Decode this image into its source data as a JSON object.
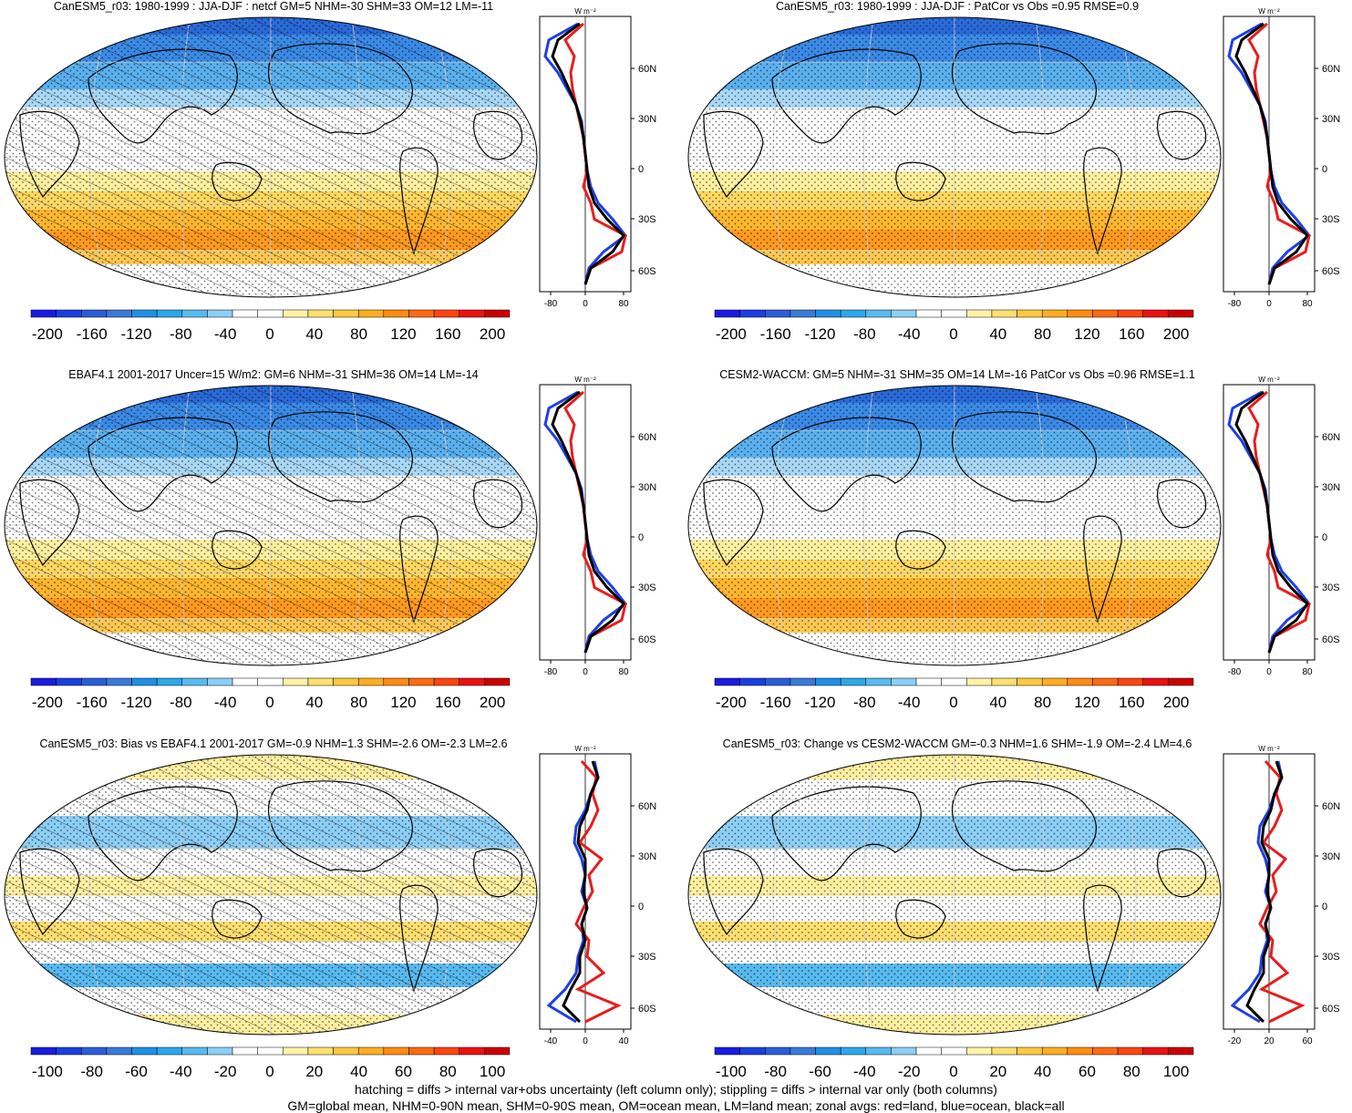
{
  "panels": [
    {
      "title": "CanESM5_r03: 1980-1999 : JJA-DJF : netcf GM=5 NHM=-30 SHM=33 OM=12 LM=-11",
      "colorbar": [
        "-200",
        "-160",
        "-120",
        "-80",
        "-40",
        "0",
        "40",
        "80",
        "120",
        "160",
        "200"
      ],
      "zonal_ticks": [
        "-80",
        "0",
        "80"
      ],
      "hatched": true,
      "variant": "base"
    },
    {
      "title": "CanESM5_r03: 1980-1999 : JJA-DJF : PatCor vs Obs =0.95 RMSE=0.9",
      "colorbar": [
        "-200",
        "-160",
        "-120",
        "-80",
        "-40",
        "0",
        "40",
        "80",
        "120",
        "160",
        "200"
      ],
      "zonal_ticks": [
        "-80",
        "0",
        "80"
      ],
      "hatched": false,
      "variant": "base"
    },
    {
      "title": "EBAF4.1 2001-2017 Uncer=15 W/m2: GM=6 NHM=-31 SHM=36 OM=14 LM=-14",
      "colorbar": [
        "-200",
        "-160",
        "-120",
        "-80",
        "-40",
        "0",
        "40",
        "80",
        "120",
        "160",
        "200"
      ],
      "zonal_ticks": [
        "-80",
        "0",
        "80"
      ],
      "hatched": true,
      "variant": "base"
    },
    {
      "title": "CESM2-WACCM: GM=5 NHM=-31 SHM=35 OM=14 LM=-16 PatCor vs Obs =0.96 RMSE=1.1",
      "colorbar": [
        "-200",
        "-160",
        "-120",
        "-80",
        "-40",
        "0",
        "40",
        "80",
        "120",
        "160",
        "200"
      ],
      "zonal_ticks": [
        "-80",
        "0",
        "80"
      ],
      "hatched": false,
      "variant": "base"
    },
    {
      "title": "CanESM5_r03: Bias vs EBAF4.1 2001-2017 GM=-0.9 NHM=1.3 SHM=-2.6 OM=-2.3 LM=2.6",
      "colorbar": [
        "-100",
        "-80",
        "-60",
        "-40",
        "-20",
        "0",
        "20",
        "40",
        "60",
        "80",
        "100"
      ],
      "zonal_ticks": [
        "-40",
        "0",
        "40"
      ],
      "hatched": true,
      "variant": "diff"
    },
    {
      "title": "CanESM5_r03: Change vs CESM2-WACCM GM=-0.3 NHM=1.6 SHM=-1.9 OM=-2.4 LM=4.6",
      "colorbar": [
        "-100",
        "-80",
        "-60",
        "-40",
        "-20",
        "0",
        "20",
        "40",
        "60",
        "80",
        "100"
      ],
      "zonal_ticks": [
        "-20",
        "20",
        "60"
      ],
      "hatched": false,
      "variant": "diff"
    }
  ],
  "lat_labels": [
    "60N",
    "30N",
    "0",
    "30S",
    "60S"
  ],
  "zonal_unit": "W m⁻²",
  "colors": {
    "ocean": "#1e3fe6",
    "land": "#e61e1e",
    "all": "#000000",
    "palette": [
      "#1a1ae6",
      "#1a3fe0",
      "#2a5ed8",
      "#3a7ad8",
      "#1e90e6",
      "#2aa8ec",
      "#58baf0",
      "#8ccff6",
      "#ffffff",
      "#ffffff",
      "#fff3a8",
      "#ffe070",
      "#ffc840",
      "#ffae20",
      "#ff8c10",
      "#ff6a10",
      "#ff4410",
      "#ee1010",
      "#cc0000"
    ]
  },
  "footer": {
    "line1": "hatching = diffs > internal var+obs uncertainty (left column only); stippling = diffs > internal var only (both columns)",
    "line2": "GM=global mean, NHM=0-90N mean, SHM=0-90S mean, OM=ocean mean, LM=land mean; zonal avgs: red=land, blue=ocean, black=all"
  }
}
